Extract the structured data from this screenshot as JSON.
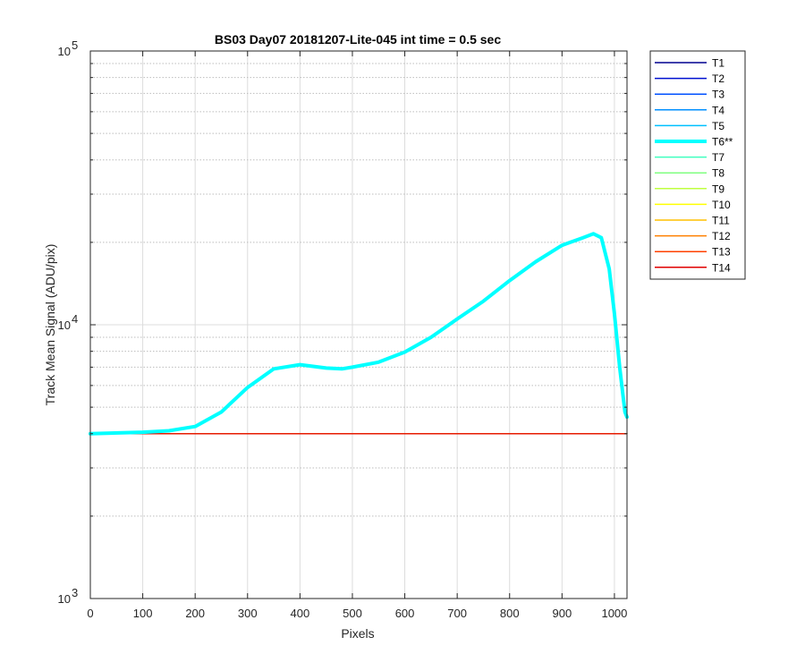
{
  "chart_data": {
    "type": "line",
    "title": "BS03 Day07 20181207-Lite-045 int time = 0.5 sec",
    "xlabel": "Pixels",
    "ylabel": "Track Mean Signal (ADU/pix)",
    "xlim": [
      0,
      1024
    ],
    "ylim": [
      1000,
      100000
    ],
    "yscale": "log",
    "grid": true,
    "legend_position": "outside-right",
    "x_ticks": [
      "0",
      "100",
      "200",
      "300",
      "400",
      "500",
      "600",
      "700",
      "800",
      "900",
      "1000"
    ],
    "y_ticks": [
      {
        "base": "10",
        "exp": "3",
        "value": 1000
      },
      {
        "base": "10",
        "exp": "4",
        "value": 10000
      },
      {
        "base": "10",
        "exp": "5",
        "value": 100000
      }
    ],
    "series": [
      {
        "name": "T1",
        "color": "#00008f",
        "highlight": false,
        "x": [
          0,
          1024
        ],
        "y": [
          4000,
          4000
        ]
      },
      {
        "name": "T2",
        "color": "#0010d0",
        "highlight": false,
        "x": [
          0,
          1024
        ],
        "y": [
          4000,
          4000
        ]
      },
      {
        "name": "T3",
        "color": "#0050ff",
        "highlight": false,
        "x": [
          0,
          1024
        ],
        "y": [
          4000,
          4000
        ]
      },
      {
        "name": "T4",
        "color": "#0090ff",
        "highlight": false,
        "x": [
          0,
          1024
        ],
        "y": [
          4000,
          4000
        ]
      },
      {
        "name": "T5",
        "color": "#00c0ff",
        "highlight": false,
        "x": [
          0,
          1024
        ],
        "y": [
          4000,
          4000
        ]
      },
      {
        "name": "T6**",
        "color": "#00ffff",
        "highlight": true,
        "x": [
          0,
          100,
          150,
          200,
          250,
          300,
          350,
          400,
          450,
          480,
          500,
          550,
          600,
          650,
          700,
          750,
          800,
          850,
          900,
          940,
          960,
          975,
          990,
          1000,
          1010,
          1020,
          1024
        ],
        "y": [
          4000,
          4050,
          4100,
          4250,
          4800,
          5900,
          6900,
          7150,
          6950,
          6900,
          7000,
          7300,
          7950,
          9000,
          10500,
          12200,
          14500,
          17000,
          19500,
          20800,
          21500,
          20800,
          16000,
          11000,
          7000,
          4800,
          4600
        ]
      },
      {
        "name": "T7",
        "color": "#40ffbf",
        "highlight": false,
        "x": [
          0,
          1024
        ],
        "y": [
          4000,
          4000
        ]
      },
      {
        "name": "T8",
        "color": "#80ff80",
        "highlight": false,
        "x": [
          0,
          1024
        ],
        "y": [
          4000,
          4000
        ]
      },
      {
        "name": "T9",
        "color": "#bfff40",
        "highlight": false,
        "x": [
          0,
          1024
        ],
        "y": [
          4000,
          4000
        ]
      },
      {
        "name": "T10",
        "color": "#ffff00",
        "highlight": false,
        "x": [
          0,
          1024
        ],
        "y": [
          4000,
          4000
        ]
      },
      {
        "name": "T11",
        "color": "#ffc000",
        "highlight": false,
        "x": [
          0,
          1024
        ],
        "y": [
          4000,
          4000
        ]
      },
      {
        "name": "T12",
        "color": "#ff8000",
        "highlight": false,
        "x": [
          0,
          1024
        ],
        "y": [
          4000,
          4000
        ]
      },
      {
        "name": "T13",
        "color": "#ff4000",
        "highlight": false,
        "x": [
          0,
          1024
        ],
        "y": [
          4000,
          4000
        ]
      },
      {
        "name": "T14",
        "color": "#e00000",
        "highlight": false,
        "x": [
          0,
          1024
        ],
        "y": [
          4000,
          4000
        ]
      }
    ]
  }
}
